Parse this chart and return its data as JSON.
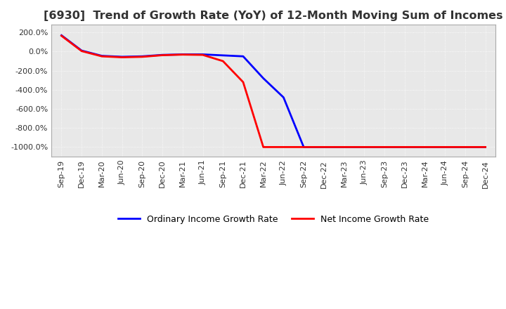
{
  "title": "[6930]  Trend of Growth Rate (YoY) of 12-Month Moving Sum of Incomes",
  "title_fontsize": 11.5,
  "ylim": [
    -1100,
    280
  ],
  "yticks": [
    200,
    0,
    -200,
    -400,
    -600,
    -800,
    -1000
  ],
  "background_color": "#ffffff",
  "plot_background": "#e8e8e8",
  "grid_color": "#ffffff",
  "legend_entries": [
    "Ordinary Income Growth Rate",
    "Net Income Growth Rate"
  ],
  "line_colors": [
    "blue",
    "red"
  ],
  "x_labels": [
    "Sep-19",
    "Dec-19",
    "Mar-20",
    "Jun-20",
    "Sep-20",
    "Dec-20",
    "Mar-21",
    "Jun-21",
    "Sep-21",
    "Dec-21",
    "Mar-22",
    "Jun-22",
    "Sep-22",
    "Dec-22",
    "Mar-23",
    "Jun-23",
    "Sep-23",
    "Dec-23",
    "Mar-24",
    "Jun-24",
    "Sep-24",
    "Dec-24"
  ],
  "ordinary_income": [
    170,
    10,
    -45,
    -55,
    -50,
    -35,
    -30,
    -30,
    -40,
    -50,
    -280,
    -480,
    -1000,
    -1000,
    -1000,
    -1000,
    -1000,
    -1000,
    -1000,
    -1000,
    -1000,
    -1000
  ],
  "net_income": [
    165,
    5,
    -50,
    -60,
    -55,
    -38,
    -32,
    -35,
    -100,
    -320,
    -1000,
    -1000,
    -1000,
    -1000,
    -1000,
    -1000,
    -1000,
    -1000,
    -1000,
    -1000,
    -1000,
    -1000
  ]
}
